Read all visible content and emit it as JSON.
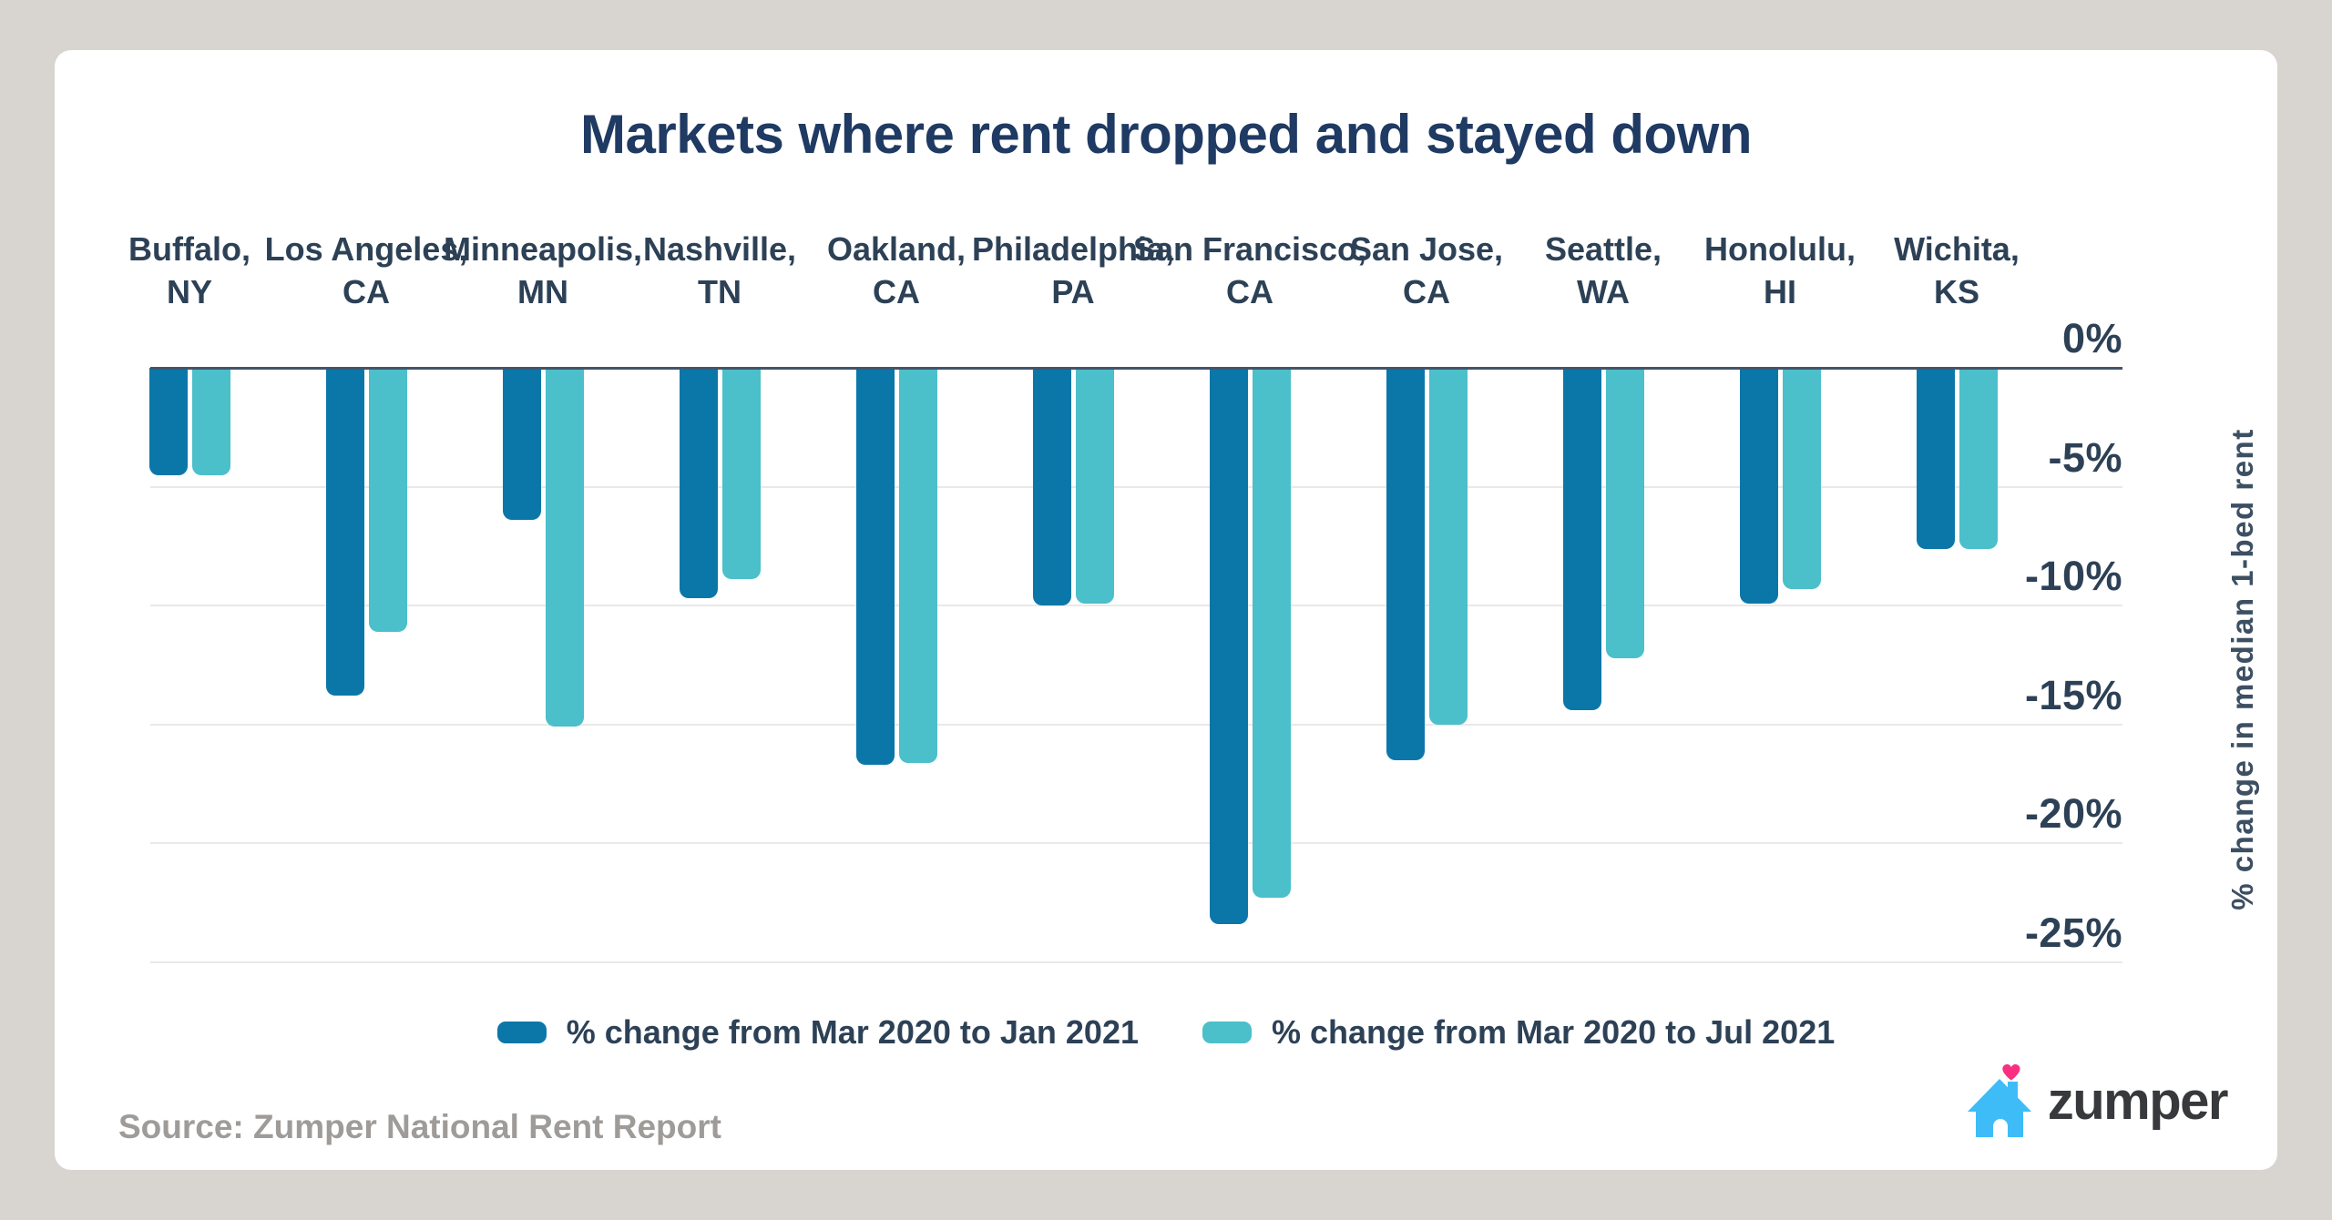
{
  "title": "Markets where rent dropped and stayed down",
  "source": "Source: Zumper National Rent Report",
  "brand": {
    "name": "zumper",
    "house_color": "#3ebcf8",
    "heart_color": "#fa2f7f",
    "text_color": "#37393c"
  },
  "colors": {
    "page_bg": "#d8d4d0",
    "card_bg": "#ffffff",
    "title": "#1f3a63",
    "labels": "#2d4156",
    "series1": "#0b77a9",
    "series2": "#4bbfca",
    "gridline": "#e9e9e9",
    "zero_line": "#44546a",
    "source_text": "#9e9b98"
  },
  "legend": [
    {
      "label": "% change from Mar 2020 to Jan 2021",
      "color": "#0b77a9"
    },
    {
      "label": "% change from Mar 2020 to Jul 2021",
      "color": "#4bbfca"
    }
  ],
  "chart_data": {
    "type": "bar",
    "categories": [
      "Buffalo, NY",
      "Los Angeles, CA",
      "Minneapolis, MN",
      "Nashville, TN",
      "Oakland, CA",
      "Philadelphia, PA",
      "San Francisco, CA",
      "San Jose, CA",
      "Seattle, WA",
      "Honolulu, HI",
      "Wichita, KS"
    ],
    "category_lines": [
      [
        "Buffalo,",
        "NY"
      ],
      [
        "Los Angeles,",
        "CA"
      ],
      [
        "Minneapolis,",
        "MN"
      ],
      [
        "Nashville,",
        "TN"
      ],
      [
        "Oakland,",
        "CA"
      ],
      [
        "Philadelphia,",
        "PA"
      ],
      [
        "San Francisco,",
        "CA"
      ],
      [
        "San Jose,",
        "CA"
      ],
      [
        "Seattle,",
        "WA"
      ],
      [
        "Honolulu,",
        "HI"
      ],
      [
        "Wichita,",
        "KS"
      ]
    ],
    "series": [
      {
        "name": "% change from Mar 2020 to Jan 2021",
        "color": "#0b77a9",
        "values": [
          -4.5,
          -13.8,
          -6.4,
          -9.7,
          -16.7,
          -10.0,
          -23.4,
          -16.5,
          -14.4,
          -9.9,
          -7.6
        ]
      },
      {
        "name": "% change from Mar 2020 to Jul 2021",
        "color": "#4bbfca",
        "values": [
          -4.5,
          -11.1,
          -15.1,
          -8.9,
          -16.6,
          -9.9,
          -22.3,
          -15.0,
          -12.2,
          -9.3,
          -7.6
        ]
      }
    ],
    "title": "Markets where rent dropped and stayed down",
    "xlabel": "",
    "ylabel": "% change in median 1-bed rent",
    "ylim": [
      -25,
      0
    ],
    "yticks": [
      {
        "value": 0,
        "label": "0%"
      },
      {
        "value": -5,
        "label": "-5%"
      },
      {
        "value": -10,
        "label": "-10%"
      },
      {
        "value": -15,
        "label": "-15%"
      },
      {
        "value": -20,
        "label": "-20%"
      },
      {
        "value": -25,
        "label": "-25%"
      }
    ],
    "grid": "horizontal",
    "legend_position": "bottom"
  }
}
